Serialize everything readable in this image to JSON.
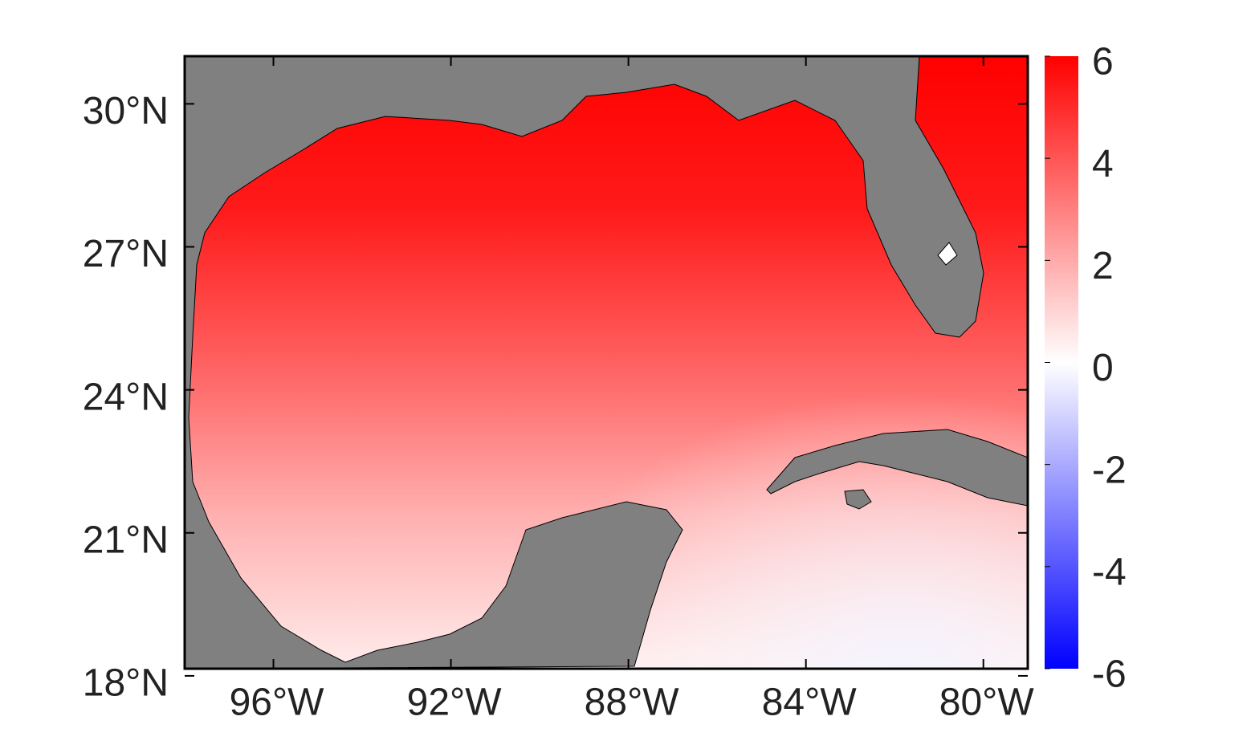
{
  "chart_data": {
    "type": "map",
    "xlim": [
      -98,
      -79
    ],
    "ylim": [
      18.15,
      31
    ],
    "xticks": [
      {
        "value": -96,
        "label": "96°W"
      },
      {
        "value": -92,
        "label": "92°W"
      },
      {
        "value": -88,
        "label": "88°W"
      },
      {
        "value": -84,
        "label": "84°W"
      },
      {
        "value": -80,
        "label": "80°W"
      }
    ],
    "yticks": [
      {
        "value": 18,
        "label": "18°N"
      },
      {
        "value": 21,
        "label": "21°N"
      },
      {
        "value": 24,
        "label": "24°N"
      },
      {
        "value": 27,
        "label": "27°N"
      },
      {
        "value": 30,
        "label": "30°N"
      }
    ],
    "land_color": "#808080",
    "colorbar": {
      "lim": [
        -6,
        6
      ],
      "ticks": [
        -6,
        -4,
        -2,
        0,
        2,
        4,
        6
      ],
      "colormap": [
        "#0000ff",
        "#ffffff",
        "#ff0000"
      ]
    }
  }
}
